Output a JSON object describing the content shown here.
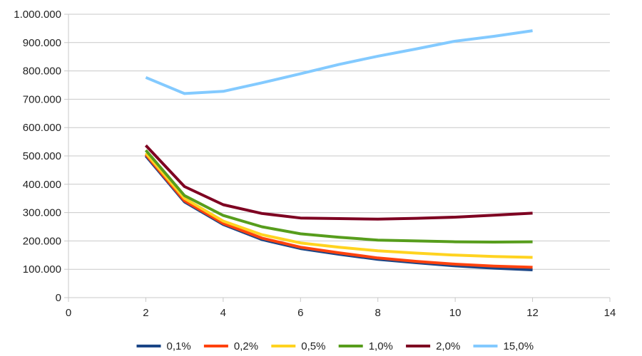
{
  "chart_data": {
    "type": "line",
    "title": "",
    "xlabel": "",
    "ylabel": "",
    "xlim": [
      0,
      14
    ],
    "ylim": [
      0,
      1000000
    ],
    "x_ticks": [
      "0",
      "2",
      "4",
      "6",
      "8",
      "10",
      "12",
      "14"
    ],
    "y_ticks": [
      "0",
      "100.000",
      "200.000",
      "300.000",
      "400.000",
      "500.000",
      "600.000",
      "700.000",
      "800.000",
      "900.000",
      "1.000.000"
    ],
    "grid": "horizontal",
    "legend_position": "bottom",
    "x": [
      2,
      3,
      4,
      5,
      6,
      7,
      8,
      9,
      10,
      11,
      12
    ],
    "series": [
      {
        "name": "0,1%",
        "color": "#1a4586",
        "values": [
          500000,
          338000,
          258000,
          205000,
          173000,
          153000,
          135000,
          123000,
          112000,
          104000,
          98000
        ]
      },
      {
        "name": "0,2%",
        "color": "#ff420e",
        "values": [
          505000,
          342000,
          262000,
          210000,
          178000,
          158000,
          140000,
          128000,
          118000,
          111000,
          107000
        ]
      },
      {
        "name": "0,5%",
        "color": "#ffd320",
        "values": [
          510000,
          350000,
          270000,
          222000,
          193000,
          178000,
          165000,
          157000,
          150000,
          145000,
          142000
        ]
      },
      {
        "name": "1,0%",
        "color": "#579d1c",
        "values": [
          520000,
          360000,
          290000,
          250000,
          225000,
          213000,
          203000,
          200000,
          197000,
          196000,
          197000
        ]
      },
      {
        "name": "2,0%",
        "color": "#7e0021",
        "values": [
          537000,
          392000,
          328000,
          297000,
          281000,
          279000,
          277000,
          280000,
          284000,
          291000,
          298000
        ]
      },
      {
        "name": "15,0%",
        "color": "#83caff",
        "values": [
          777000,
          720000,
          728000,
          758000,
          790000,
          823000,
          852000,
          878000,
          905000,
          922000,
          942000
        ]
      }
    ]
  }
}
